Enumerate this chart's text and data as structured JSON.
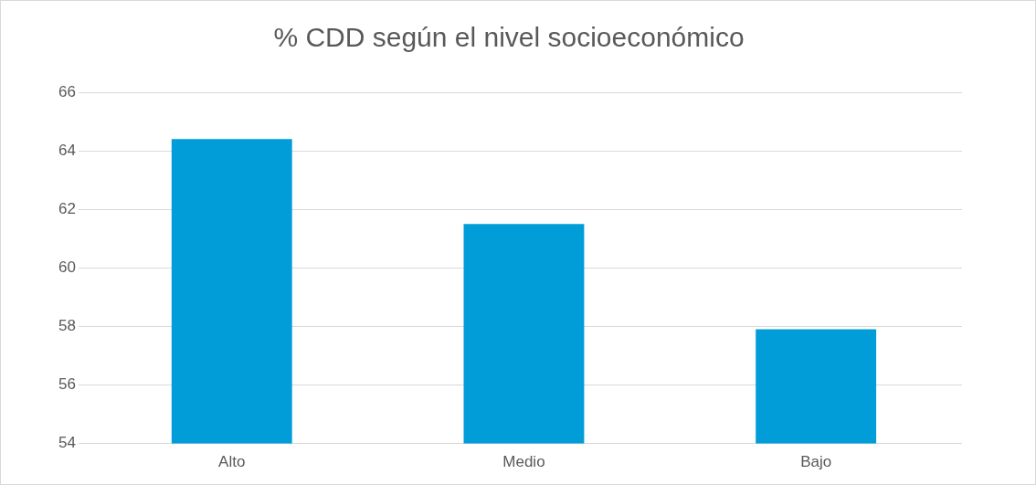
{
  "chart_data": {
    "type": "bar",
    "title": "% CDD según el nivel socioeconómico",
    "categories": [
      "Alto",
      "Medio",
      "Bajo"
    ],
    "values": [
      64.4,
      61.5,
      57.9
    ],
    "color": "#009dd9",
    "ylim": [
      54,
      66
    ],
    "yticks": [
      54,
      56,
      58,
      60,
      62,
      64,
      66
    ],
    "grid": "y",
    "legend": false
  }
}
